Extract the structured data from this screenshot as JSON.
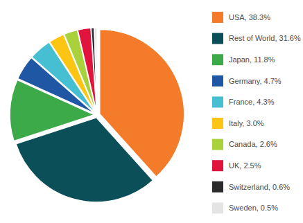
{
  "chart_data": {
    "type": "pie",
    "categories": [
      "USA, 38.3%",
      "Rest of World, 31.6%",
      "Japan, 11.8%",
      "Germany, 4.7%",
      "France, 4.3%",
      "Italy, 3.0%",
      "Canada, 2.6%",
      "UK, 2.5%",
      "Switzerland, 0.6%",
      "Sweden, 0.5%"
    ],
    "values": [
      38.3,
      31.6,
      11.8,
      4.7,
      4.3,
      3.0,
      2.6,
      2.5,
      0.6,
      0.5
    ],
    "colors": [
      "#f47b2a",
      "#0b4f59",
      "#3daa4a",
      "#1f57a5",
      "#47bfd2",
      "#fcc514",
      "#a9d13b",
      "#e0143d",
      "#2b2b2b",
      "#e4e4e4"
    ],
    "legend": "right"
  }
}
